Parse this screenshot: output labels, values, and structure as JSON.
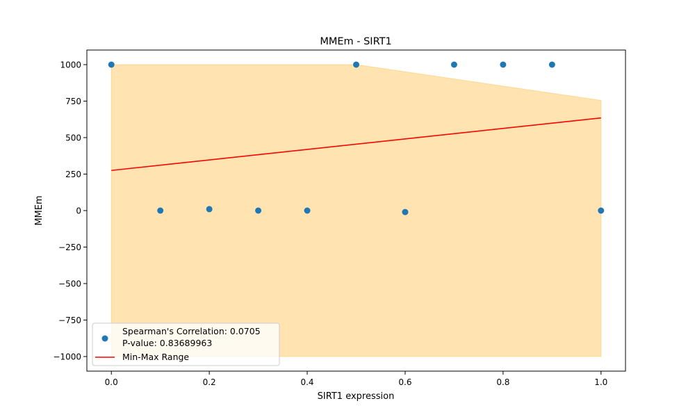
{
  "chart_data": {
    "type": "scatter",
    "title": "MMEm - SIRT1",
    "xlabel": "SIRT1 expression",
    "ylabel": "MMEm",
    "xlim": [
      -0.05,
      1.05
    ],
    "ylim": [
      -1100,
      1100
    ],
    "x_ticks": [
      0.0,
      0.2,
      0.4,
      0.6,
      0.8,
      1.0
    ],
    "x_tick_labels": [
      "0.0",
      "0.2",
      "0.4",
      "0.6",
      "0.8",
      "1.0"
    ],
    "y_ticks": [
      -1000,
      -750,
      -500,
      -250,
      0,
      250,
      500,
      750,
      1000
    ],
    "y_tick_labels": [
      "−1000",
      "−750",
      "−500",
      "−250",
      "0",
      "250",
      "500",
      "750",
      "1000"
    ],
    "grid": false,
    "legend_position": "lower-left",
    "series": [
      {
        "type": "scatter",
        "color": "#1f77b4",
        "points": [
          {
            "x": 0.0,
            "y": 1000
          },
          {
            "x": 0.1,
            "y": 0
          },
          {
            "x": 0.2,
            "y": 10
          },
          {
            "x": 0.3,
            "y": 0
          },
          {
            "x": 0.4,
            "y": 0
          },
          {
            "x": 0.5,
            "y": 1000
          },
          {
            "x": 0.6,
            "y": -10
          },
          {
            "x": 0.7,
            "y": 1000
          },
          {
            "x": 0.8,
            "y": 1000
          },
          {
            "x": 0.9,
            "y": 1000
          },
          {
            "x": 1.0,
            "y": 0
          }
        ]
      },
      {
        "type": "line",
        "name": "Min-Max Range",
        "color": "#ff0000",
        "points": [
          {
            "x": 0.0,
            "y": 275
          },
          {
            "x": 1.0,
            "y": 635
          }
        ]
      },
      {
        "type": "area",
        "color": "#ffa500",
        "opacity": 0.3,
        "upper": [
          {
            "x": 0.0,
            "y": 1000
          },
          {
            "x": 0.5,
            "y": 1000
          },
          {
            "x": 1.0,
            "y": 755
          }
        ],
        "lower": [
          {
            "x": 0.0,
            "y": -1000
          },
          {
            "x": 1.0,
            "y": -1000
          }
        ]
      }
    ],
    "legend": [
      {
        "marker": "dot",
        "color": "#1f77b4",
        "lines": [
          "Spearman's Correlation: 0.0705",
          "P-value: 0.83689963"
        ]
      },
      {
        "marker": "line",
        "color": "#ff0000",
        "lines": [
          "Min-Max Range"
        ]
      }
    ]
  }
}
